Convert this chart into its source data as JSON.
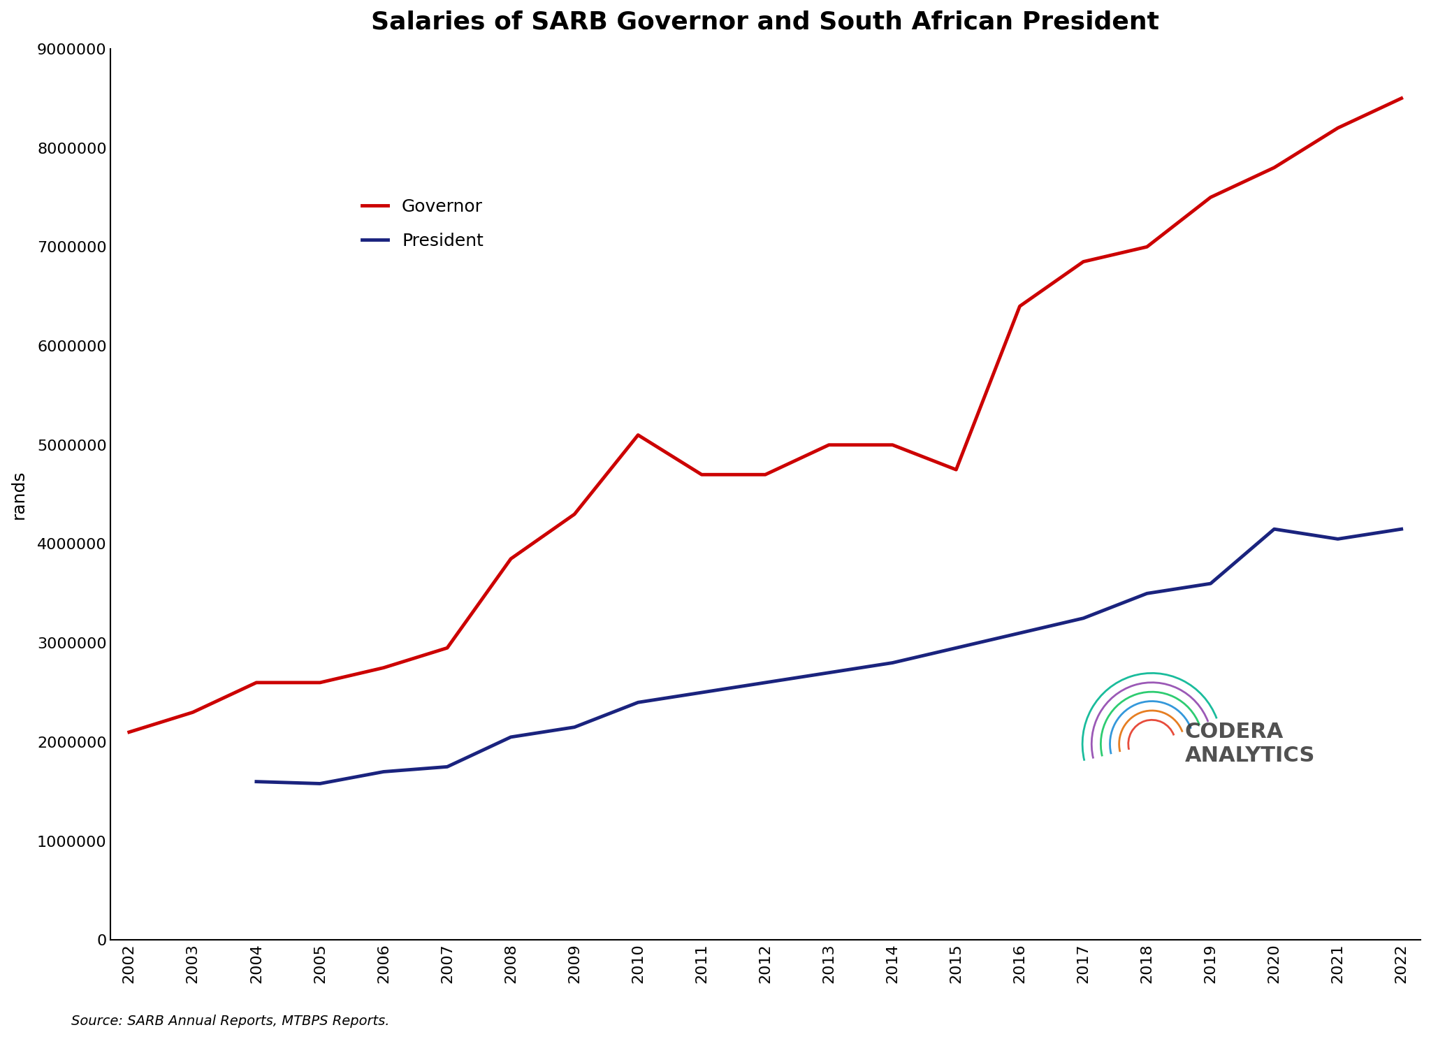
{
  "title": "Salaries of SARB Governor and South African President",
  "ylabel": "rands",
  "source_text": "Source: SARB Annual Reports, MTBPS Reports.",
  "years": [
    2002,
    2003,
    2004,
    2005,
    2006,
    2007,
    2008,
    2009,
    2010,
    2011,
    2012,
    2013,
    2014,
    2015,
    2016,
    2017,
    2018,
    2019,
    2020,
    2021,
    2022
  ],
  "governor": [
    2100000,
    2300000,
    2600000,
    2600000,
    2750000,
    2950000,
    3850000,
    4300000,
    5100000,
    4700000,
    4700000,
    5000000,
    5000000,
    4750000,
    6400000,
    6850000,
    7000000,
    7500000,
    7800000,
    8200000,
    8500000
  ],
  "president": [
    null,
    null,
    1600000,
    1580000,
    1700000,
    1750000,
    2050000,
    2150000,
    2400000,
    2500000,
    2600000,
    2700000,
    2800000,
    2950000,
    3100000,
    3250000,
    3500000,
    3600000,
    4150000,
    4050000,
    4150000
  ],
  "governor_color": "#cc0000",
  "president_color": "#1a237e",
  "background_color": "#ffffff",
  "ylim": [
    0,
    9000000
  ],
  "yticks": [
    0,
    1000000,
    2000000,
    3000000,
    4000000,
    5000000,
    6000000,
    7000000,
    8000000,
    9000000
  ],
  "title_fontsize": 26,
  "axis_label_fontsize": 18,
  "tick_fontsize": 16,
  "legend_fontsize": 18,
  "line_width": 3.5
}
